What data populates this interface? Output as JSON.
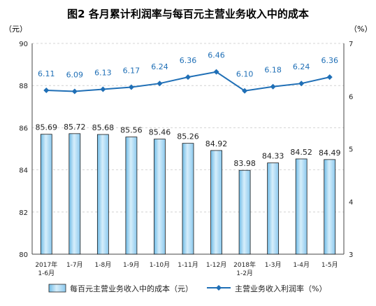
{
  "chart_data": {
    "type": "bar",
    "title": "图2 各月累计利润率与每百元主营业务收入中的成本",
    "left_unit": "（元）",
    "right_unit": "（%）",
    "categories": [
      [
        "2017年",
        "1-6月"
      ],
      [
        "1-7月"
      ],
      [
        "1-8月"
      ],
      [
        "1-9月"
      ],
      [
        "1-10月"
      ],
      [
        "1-11月"
      ],
      [
        "1-12月"
      ],
      [
        "2018年",
        "1-2月"
      ],
      [
        "1-3月"
      ],
      [
        "1-4月"
      ],
      [
        "1-5月"
      ]
    ],
    "left_axis": {
      "ylim": [
        80,
        90
      ],
      "ticks": [
        80,
        82,
        84,
        86,
        88,
        90
      ]
    },
    "right_axis": {
      "ylim": [
        3,
        7
      ],
      "ticks": [
        3,
        4,
        5,
        6,
        7
      ]
    },
    "series": [
      {
        "name": "每百元主营业务收入中的成本（元）",
        "type": "bar",
        "axis": "left",
        "values": [
          85.69,
          85.72,
          85.68,
          85.56,
          85.46,
          85.26,
          84.92,
          83.98,
          84.33,
          84.52,
          84.49
        ],
        "labels": [
          "85.69",
          "85.72",
          "85.68",
          "85.56",
          "85.46",
          "85.26",
          "84.92",
          "83.98",
          "84.33",
          "84.52",
          "84.49"
        ],
        "color": "#9fd4f2"
      },
      {
        "name": "主营业务收入利润率（%）",
        "type": "line",
        "axis": "right",
        "values": [
          6.11,
          6.09,
          6.13,
          6.17,
          6.24,
          6.36,
          6.46,
          6.1,
          6.18,
          6.24,
          6.36
        ],
        "labels": [
          "6.11",
          "6.09",
          "6.13",
          "6.17",
          "6.24",
          "6.36",
          "6.46",
          "6.10",
          "6.18",
          "6.24",
          "6.36"
        ],
        "color": "#1f6fb6"
      }
    ],
    "grid": "horizontal-dashed",
    "legend_position": "bottom"
  }
}
